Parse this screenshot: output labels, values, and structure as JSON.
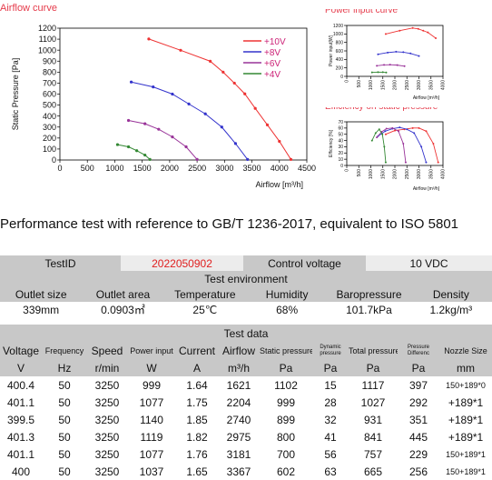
{
  "chart_data": [
    {
      "type": "line",
      "title": "Airflow curve",
      "xlabel": "Airflow [m³/h]",
      "ylabel": "Static Pressure [Pa]",
      "xlim": [
        0,
        4500
      ],
      "ylim": [
        0,
        1200
      ],
      "xticks": [
        0,
        500,
        1000,
        1500,
        2000,
        2500,
        3000,
        3500,
        4000,
        4500
      ],
      "yticks": [
        0,
        100,
        200,
        300,
        400,
        500,
        600,
        700,
        800,
        900,
        1000,
        1100,
        1200
      ],
      "legend_position": "top-right",
      "grid": false,
      "series": [
        {
          "name": "+10V",
          "color": "#ee3333",
          "x": [
            1620,
            2200,
            2740,
            2975,
            3180,
            3370,
            3560,
            3780,
            4000,
            4210
          ],
          "y": [
            1102,
            999,
            899,
            800,
            700,
            602,
            470,
            320,
            170,
            5
          ]
        },
        {
          "name": "+8V",
          "color": "#3333cc",
          "x": [
            1300,
            1700,
            2050,
            2350,
            2650,
            2950,
            3200,
            3420
          ],
          "y": [
            710,
            665,
            600,
            510,
            420,
            300,
            150,
            5
          ]
        },
        {
          "name": "+6V",
          "color": "#993399",
          "x": [
            1250,
            1550,
            1800,
            2050,
            2300,
            2500
          ],
          "y": [
            360,
            330,
            280,
            210,
            120,
            5
          ]
        },
        {
          "name": "+4V",
          "color": "#338833",
          "x": [
            1050,
            1250,
            1400,
            1550,
            1640
          ],
          "y": [
            140,
            120,
            85,
            45,
            5
          ]
        }
      ]
    },
    {
      "type": "line",
      "title": "Power input curve",
      "xlabel": "Airflow [m³/h]",
      "ylabel": "Power input[W]",
      "xlim": [
        0,
        4000
      ],
      "ylim": [
        0,
        1200
      ],
      "xticks": [
        0,
        500,
        1000,
        1500,
        2000,
        2500,
        3000,
        3500,
        4000
      ],
      "yticks": [
        0,
        200,
        400,
        600,
        800,
        1000,
        1200
      ],
      "series": [
        {
          "color": "#ee3333",
          "x": [
            1620,
            2200,
            2740,
            2975,
            3180,
            3370,
            3700
          ],
          "y": [
            999,
            1077,
            1140,
            1119,
            1077,
            1037,
            900
          ]
        },
        {
          "color": "#3333cc",
          "x": [
            1300,
            1700,
            2050,
            2350,
            2650,
            3000
          ],
          "y": [
            520,
            560,
            580,
            570,
            540,
            480
          ]
        },
        {
          "color": "#993399",
          "x": [
            1250,
            1550,
            1800,
            2100,
            2400
          ],
          "y": [
            250,
            270,
            275,
            265,
            240
          ]
        },
        {
          "color": "#338833",
          "x": [
            1050,
            1300,
            1500,
            1640
          ],
          "y": [
            95,
            100,
            98,
            90
          ]
        }
      ]
    },
    {
      "type": "line",
      "title": "Efficiency on static pressure",
      "xlabel": "Airflow [m³/h]",
      "ylabel": "Efficiency [%]",
      "xlim": [
        0,
        4000
      ],
      "ylim": [
        0,
        70
      ],
      "xticks": [
        0,
        500,
        1000,
        1500,
        2000,
        2500,
        3000,
        3500,
        4000
      ],
      "yticks": [
        0,
        10,
        20,
        30,
        40,
        50,
        60,
        70
      ],
      "series": [
        {
          "color": "#ee3333",
          "x": [
            1620,
            2000,
            2400,
            2740,
            3000,
            3300,
            3600,
            3800
          ],
          "y": [
            50,
            56,
            58,
            60,
            60,
            55,
            35,
            5
          ]
        },
        {
          "color": "#3333cc",
          "x": [
            1300,
            1600,
            1900,
            2200,
            2500,
            2800,
            3100,
            3300
          ],
          "y": [
            47,
            55,
            59,
            61,
            58,
            52,
            30,
            5
          ]
        },
        {
          "color": "#993399",
          "x": [
            1250,
            1450,
            1650,
            1900,
            2150,
            2350,
            2450
          ],
          "y": [
            45,
            54,
            59,
            60,
            55,
            35,
            5
          ]
        },
        {
          "color": "#338833",
          "x": [
            1050,
            1200,
            1350,
            1480,
            1560,
            1620
          ],
          "y": [
            40,
            52,
            58,
            50,
            30,
            5
          ]
        }
      ]
    }
  ],
  "report": {
    "title": "Performance test with reference to GB/T 1236-2017, equivalent to ISO 5801",
    "test_id_label": "TestID",
    "test_id_value": "2022050902",
    "control_label": "Control voltage",
    "control_value": "10 VDC",
    "env_header": "Test environment",
    "env_labels": [
      "Outlet size",
      "Outlet area",
      "Temperature",
      "Humidity",
      "Baropressure",
      "Density"
    ],
    "env_values": [
      "339mm",
      "0.0903㎡",
      "25℃",
      "68%",
      "101.7kPa",
      "1.2kg/m³"
    ],
    "data_header": "Test data",
    "col_headers": [
      "Voltage",
      "Frequency",
      "Speed",
      "Power input",
      "Current",
      "Airflow",
      "Static pressure",
      "Dynamic pressure",
      "Total pressure",
      "Pressure Differenc",
      "Nozzle Size"
    ],
    "col_units": [
      "V",
      "Hz",
      "r/min",
      "W",
      "A",
      "m³/h",
      "Pa",
      "Pa",
      "Pa",
      "Pa",
      "mm"
    ],
    "rows": [
      [
        "400.4",
        "50",
        "3250",
        "999",
        "1.64",
        "1621",
        "1102",
        "15",
        "1117",
        "397",
        "150+189*0"
      ],
      [
        "401.1",
        "50",
        "3250",
        "1077",
        "1.75",
        "2204",
        "999",
        "28",
        "1027",
        "292",
        "+189*1"
      ],
      [
        "399.5",
        "50",
        "3250",
        "1140",
        "1.85",
        "2740",
        "899",
        "32",
        "931",
        "351",
        "+189*1"
      ],
      [
        "401.3",
        "50",
        "3250",
        "1119",
        "1.82",
        "2975",
        "800",
        "41",
        "841",
        "445",
        "+189*1"
      ],
      [
        "401.1",
        "50",
        "3250",
        "1077",
        "1.76",
        "3181",
        "700",
        "56",
        "757",
        "229",
        "150+189*1"
      ],
      [
        "400",
        "50",
        "3250",
        "1037",
        "1.65",
        "3367",
        "602",
        "63",
        "665",
        "256",
        "150+189*1"
      ]
    ]
  }
}
